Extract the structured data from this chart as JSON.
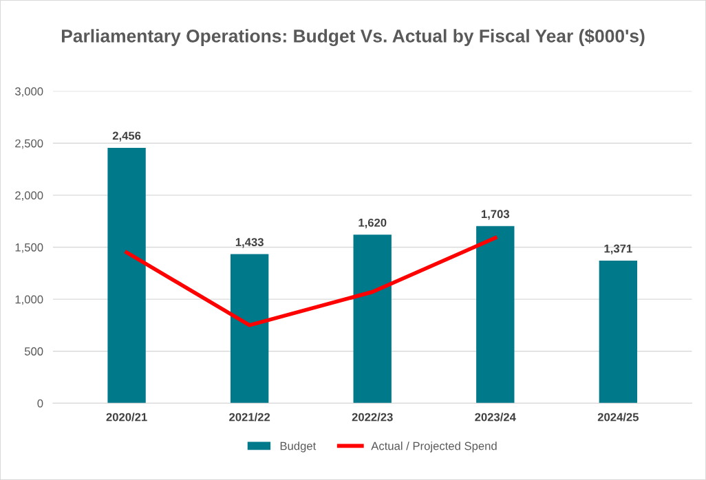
{
  "chart_data": {
    "type": "bar",
    "title": "Parliamentary Operations: Budget Vs. Actual by Fiscal Year ($000's)",
    "categories": [
      "2020/21",
      "2021/22",
      "2022/23",
      "2023/24",
      "2024/25"
    ],
    "series": [
      {
        "name": "Budget",
        "color": "#00798a",
        "values": [
          2456,
          1433,
          1620,
          1703,
          1371
        ],
        "value_labels": [
          "2,456",
          "1,433",
          "1,620",
          "1,703",
          "1,371"
        ]
      },
      {
        "name": "Actual / Projected Spend",
        "type": "line",
        "color": "#ff0000",
        "values": [
          1450,
          750,
          1070,
          1590,
          null
        ]
      }
    ],
    "ylim": [
      0,
      3000
    ],
    "yticks": [
      {
        "value": 0,
        "label": "0"
      },
      {
        "value": 500,
        "label": "500"
      },
      {
        "value": 1000,
        "label": "1,000"
      },
      {
        "value": 1500,
        "label": "1,500"
      },
      {
        "value": 2000,
        "label": "2,000"
      },
      {
        "value": 2500,
        "label": "2,500"
      },
      {
        "value": 3000,
        "label": "3,000"
      }
    ],
    "grid": "y",
    "legend": "bottom",
    "marker": "none",
    "line_style": "solid"
  }
}
